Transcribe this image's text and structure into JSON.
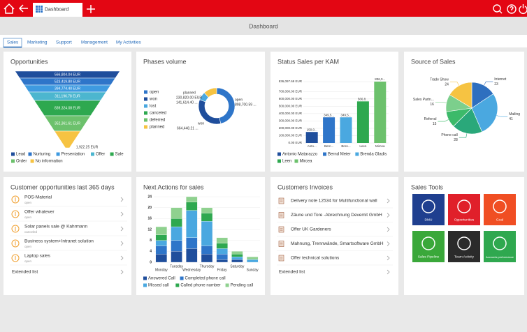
{
  "header": {
    "tab": "Dashboard",
    "title": "Dashboard"
  },
  "tabs": [
    "Sales",
    "Marketing",
    "Support",
    "Management",
    "My Activities"
  ],
  "opportunities": {
    "title": "Opportunities",
    "stages": [
      {
        "name": "Lead",
        "label": "566,804.04 EUR",
        "color": "#1f4e9c"
      },
      {
        "name": "Nurturing",
        "label": "523,419.80 EUR",
        "color": "#2e75c9"
      },
      {
        "name": "Presentation",
        "label": "394,774.40 EUR",
        "color": "#3e9ae0"
      },
      {
        "name": "Offer",
        "label": "311,196.78 EUR",
        "color": "#4cb6cf"
      },
      {
        "name": "Sale",
        "label": "839,324.08 EUR",
        "color": "#2ea84f"
      },
      {
        "name": "Order",
        "label": "352,361.61 EUR",
        "color": "#6cc16c"
      },
      {
        "name": "No information",
        "label": "1,922.25 EUR",
        "color": "#f6c342"
      }
    ]
  },
  "phases": {
    "title": "Phases volume",
    "segments": [
      {
        "name": "open",
        "value": 898700.59,
        "label": "898,700.59 ...",
        "color": "#2e75c9"
      },
      {
        "name": "won",
        "value": 664448.21,
        "label": "664,448.21 ...",
        "color": "#1f4e9c"
      },
      {
        "name": "lost",
        "value": 141614.4,
        "label": "141,614.40 ...",
        "color": "#4aa8e0"
      },
      {
        "name": "canceled",
        "value": 0,
        "color": "#2ea84f"
      },
      {
        "name": "deferred",
        "value": 0,
        "color": "#6cc16c"
      },
      {
        "name": "planned",
        "value": 230820.0,
        "label": "230,820.00 EUR",
        "color": "#f6c342"
      }
    ]
  },
  "kam": {
    "title": "Status Sales per KAM",
    "type": "bar",
    "categories": [
      "Anto...",
      "Bern...",
      "Bren...",
      "Leen",
      "Mircea"
    ],
    "names": [
      "Antonio Matarazzo",
      "Bernd Meier",
      "Brenda Gladis",
      "Leen",
      "Mircea"
    ],
    "colors": [
      "#1f4e9c",
      "#2e75c9",
      "#4aa8e0",
      "#2ea84f",
      "#6cc16c"
    ],
    "values": [
      150000,
      349500,
      349500,
      566804.04,
      836097.69
    ],
    "value_labels": [
      "150,0...",
      "349,5...",
      "349,5...",
      "566,8...",
      "836,0..."
    ],
    "ylim": [
      0,
      836097.69
    ],
    "yticks": [
      {
        "value": 0,
        "label": "0.00 EUR"
      },
      {
        "value": 100000,
        "label": "100,000.00 EUR"
      },
      {
        "value": 200000,
        "label": "200,000.00 EUR"
      },
      {
        "value": 300000,
        "label": "300,000.00 EUR"
      },
      {
        "value": 400000,
        "label": "400,000.00 EUR"
      },
      {
        "value": 500000,
        "label": "500,000.00 EUR"
      },
      {
        "value": 600000,
        "label": "600,000.00 EUR"
      },
      {
        "value": 700000,
        "label": "700,000.00 EUR"
      },
      {
        "value": 836097.69,
        "label": "836,097.69 EUR"
      }
    ]
  },
  "source": {
    "title": "Source of Sales",
    "type": "pie",
    "categories": [
      "Internet",
      "Mailing",
      "Phone call",
      "Referral",
      "Sales Partn...",
      "Trade Show"
    ],
    "values": [
      23,
      41,
      28,
      15,
      16,
      24
    ],
    "colors": [
      "#2e6fbf",
      "#4aa8e0",
      "#2aa87a",
      "#3cba6a",
      "#7ccf8c",
      "#f6c342"
    ]
  },
  "customer_opps": {
    "title": "Customer opportunities last 365 days",
    "items": [
      {
        "title": "POS-Material",
        "status": "open"
      },
      {
        "title": "Offer whatever",
        "status": "open"
      },
      {
        "title": "Solar panels sale @ Kahrmann",
        "status": "canceled"
      },
      {
        "title": "Business system+Intranet solution",
        "status": "open"
      },
      {
        "title": "Laptop sales",
        "status": "open"
      }
    ],
    "more": "Extended list"
  },
  "next_actions": {
    "title": "Next Actions for sales",
    "type": "stacked_bar",
    "categories": [
      "Monday",
      "Tuesday",
      "Wednesday",
      "Thursday",
      "Friday",
      "Saturday",
      "Sunday"
    ],
    "series": [
      {
        "name": "Answered Call",
        "color": "#1f4e9c",
        "values": [
          3,
          4,
          5,
          3,
          1,
          1,
          0
        ]
      },
      {
        "name": "Completed phone call",
        "color": "#2e75c9",
        "values": [
          3,
          4,
          4,
          3,
          2,
          0,
          0
        ]
      },
      {
        "name": "Missed call",
        "color": "#4aa8e0",
        "values": [
          2,
          5,
          10,
          9,
          2,
          1,
          1
        ]
      },
      {
        "name": "Called phone number",
        "color": "#2ea84f",
        "values": [
          2,
          3,
          3,
          3,
          2,
          1,
          0
        ]
      },
      {
        "name": "Pending call",
        "color": "#8fd18f",
        "values": [
          3,
          4,
          2,
          2,
          2,
          1,
          1
        ]
      }
    ],
    "ylim": [
      0,
      24
    ],
    "yticks": [
      0,
      4,
      8,
      12,
      16,
      20,
      24
    ]
  },
  "invoices": {
    "title": "Customers Invoices",
    "items": [
      "Delivery note 12534 for Multifunctional wall",
      "Zäune und Tore -Abrechnung Devemit GmbH",
      "Offer UK Gardeners",
      "Mahnung, Trennwände, Smartsoftware GmbH",
      "Offer technical solutions"
    ],
    "more": "Extended list"
  },
  "tools": {
    "title": "Sales Tools",
    "tiles": [
      {
        "label": "DMU",
        "color": "#1f3f8f"
      },
      {
        "label": "Opportunities",
        "color": "#e0202a"
      },
      {
        "label": "Goal",
        "color": "#f04e23"
      },
      {
        "label": "Sales Pipeline",
        "color": "#3aa83a"
      },
      {
        "label": "Team Activity",
        "color": "#2b2b2b"
      },
      {
        "label": "Accounts performance",
        "color": "#2fa84f"
      }
    ]
  }
}
